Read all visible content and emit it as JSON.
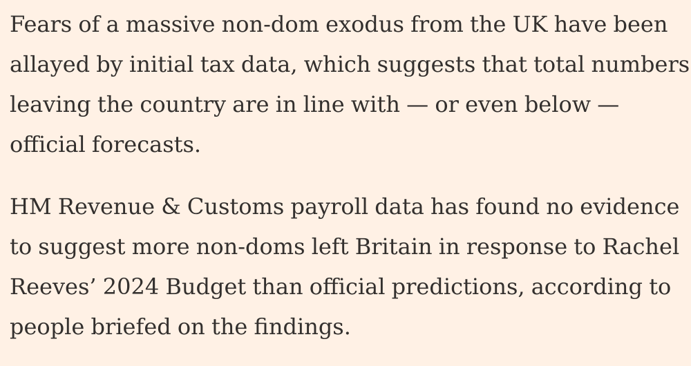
{
  "article": {
    "paragraphs": [
      {
        "lines": [
          "Fears of a massive non-dom exodus from the UK have been",
          "allayed by initial tax data, which suggests that total numbers",
          "leaving the country are in line with — or even below —",
          "official forecasts."
        ]
      },
      {
        "lines": [
          "HM Revenue & Customs payroll data has found no evidence",
          "to suggest more non-doms left Britain in response to Rachel",
          "Reeves’ 2024 Budget than official predictions, according to",
          "people briefed on the findings."
        ]
      }
    ]
  },
  "colors": {
    "background": "#fff1e5",
    "text": "#33302e"
  }
}
